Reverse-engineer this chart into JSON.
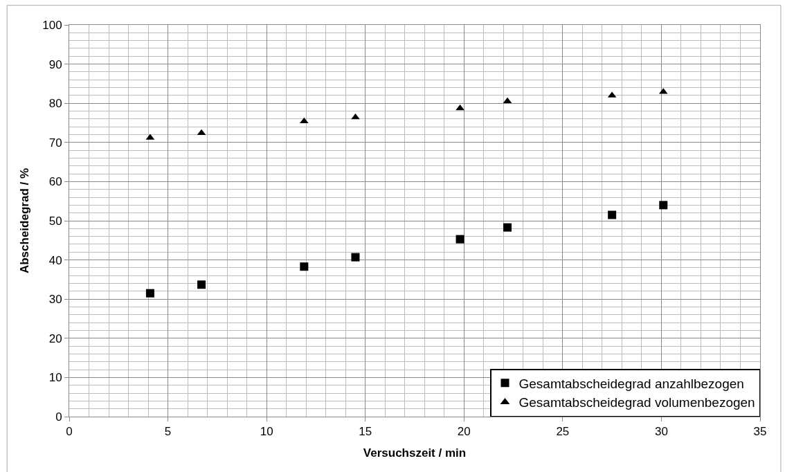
{
  "chart_data": {
    "type": "scatter",
    "xlabel": "Versuchszeit / min",
    "ylabel": "Abscheidegrad / %",
    "x": [
      4.1,
      6.7,
      11.9,
      14.5,
      19.8,
      22.2,
      27.5,
      30.1
    ],
    "series": [
      {
        "name": "Gesamtabscheidegrad anzahlbezogen",
        "color": "#000000",
        "marker": "square",
        "values": [
          31.5,
          33.7,
          38.3,
          40.7,
          45.3,
          48.3,
          51.5,
          54.0
        ]
      },
      {
        "name": "Gesamtabscheidegrad volumenbezogen",
        "color": "#000000",
        "marker": "triangle",
        "values": [
          71.2,
          72.4,
          75.4,
          76.4,
          78.7,
          80.5,
          82.0,
          82.9
        ]
      }
    ],
    "xlim": [
      0,
      35
    ],
    "xticks": [
      0,
      5,
      10,
      15,
      20,
      25,
      30,
      35
    ],
    "ylim": [
      0,
      100
    ],
    "yticks": [
      0,
      10,
      20,
      30,
      40,
      50,
      60,
      70,
      80,
      90,
      100
    ],
    "grid": true,
    "legend": "bottom right"
  }
}
